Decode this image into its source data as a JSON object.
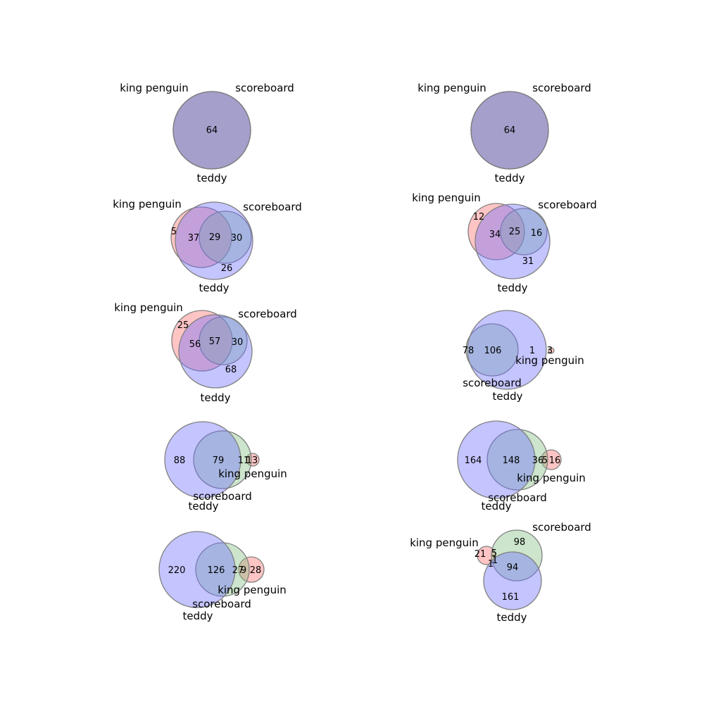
{
  "colors": {
    "king_penguin": "#ff6b6b",
    "scoreboard": "#7fbf7f",
    "teddy": "#6b6bff",
    "outline": "#808080"
  },
  "sets": [
    "king penguin",
    "scoreboard",
    "teddy"
  ],
  "panels": [
    {
      "id": "p1",
      "circles": [
        {
          "set": "king penguin",
          "color": "#ff6b6b"
        },
        {
          "set": "scoreboard",
          "color": "#7fbf7f"
        },
        {
          "set": "teddy",
          "color": "#6b6bff"
        }
      ],
      "set_labels": [
        "king penguin",
        "scoreboard",
        "teddy"
      ],
      "regions": [
        "64"
      ]
    },
    {
      "id": "p2",
      "circles": [
        {
          "set": "king penguin",
          "color": "#ff6b6b"
        },
        {
          "set": "scoreboard",
          "color": "#7fbf7f"
        },
        {
          "set": "teddy",
          "color": "#6b6bff"
        }
      ],
      "set_labels": [
        "king penguin",
        "scoreboard",
        "teddy"
      ],
      "regions": [
        "64"
      ]
    },
    {
      "id": "p3",
      "circles": [
        {
          "set": "king penguin",
          "color": "#ff6b6b"
        },
        {
          "set": "scoreboard",
          "color": "#7fbf7f"
        },
        {
          "set": "teddy",
          "color": "#6b6bff"
        }
      ],
      "set_labels": [
        "king penguin",
        "scoreboard",
        "teddy"
      ],
      "regions": [
        "5",
        "37",
        "29",
        "30",
        "26"
      ]
    },
    {
      "id": "p4",
      "circles": [
        {
          "set": "king penguin",
          "color": "#ff6b6b"
        },
        {
          "set": "scoreboard",
          "color": "#7fbf7f"
        },
        {
          "set": "teddy",
          "color": "#6b6bff"
        }
      ],
      "set_labels": [
        "king penguin",
        "scoreboard",
        "teddy"
      ],
      "regions": [
        "12",
        "34",
        "25",
        "16",
        "31"
      ]
    },
    {
      "id": "p5",
      "circles": [
        {
          "set": "king penguin",
          "color": "#ff6b6b"
        },
        {
          "set": "scoreboard",
          "color": "#7fbf7f"
        },
        {
          "set": "teddy",
          "color": "#6b6bff"
        }
      ],
      "set_labels": [
        "king penguin",
        "scoreboard",
        "teddy"
      ],
      "regions": [
        "25",
        "56",
        "57",
        "30",
        "68"
      ]
    },
    {
      "id": "p6",
      "circles": [
        {
          "set": "king penguin",
          "color": "#ff6b6b"
        },
        {
          "set": "scoreboard",
          "color": "#7fbf7f"
        },
        {
          "set": "teddy",
          "color": "#6b6bff"
        }
      ],
      "set_labels": [
        "king penguin",
        "scoreboard",
        "teddy"
      ],
      "regions": [
        "3",
        "78",
        "106",
        "1"
      ]
    },
    {
      "id": "p7",
      "circles": [
        {
          "set": "king penguin",
          "color": "#ff6b6b"
        },
        {
          "set": "scoreboard",
          "color": "#7fbf7f"
        },
        {
          "set": "teddy",
          "color": "#6b6bff"
        }
      ],
      "set_labels": [
        "king penguin",
        "scoreboard",
        "teddy"
      ],
      "regions": [
        "88",
        "79",
        "11",
        "13"
      ]
    },
    {
      "id": "p8",
      "circles": [
        {
          "set": "king penguin",
          "color": "#ff6b6b"
        },
        {
          "set": "scoreboard",
          "color": "#7fbf7f"
        },
        {
          "set": "teddy",
          "color": "#6b6bff"
        }
      ],
      "set_labels": [
        "king penguin",
        "scoreboard",
        "teddy"
      ],
      "regions": [
        "164",
        "148",
        "36",
        "5",
        "16"
      ]
    },
    {
      "id": "p9",
      "circles": [
        {
          "set": "king penguin",
          "color": "#ff6b6b"
        },
        {
          "set": "scoreboard",
          "color": "#7fbf7f"
        },
        {
          "set": "teddy",
          "color": "#6b6bff"
        }
      ],
      "set_labels": [
        "king penguin",
        "scoreboard",
        "teddy"
      ],
      "regions": [
        "220",
        "126",
        "27",
        "9",
        "28"
      ]
    },
    {
      "id": "p10",
      "circles": [
        {
          "set": "king penguin",
          "color": "#ff6b6b"
        },
        {
          "set": "scoreboard",
          "color": "#7fbf7f"
        },
        {
          "set": "teddy",
          "color": "#6b6bff"
        }
      ],
      "set_labels": [
        "king penguin",
        "scoreboard",
        "teddy"
      ],
      "regions": [
        "98",
        "21",
        "5",
        "1",
        "1",
        "94",
        "161"
      ]
    }
  ]
}
